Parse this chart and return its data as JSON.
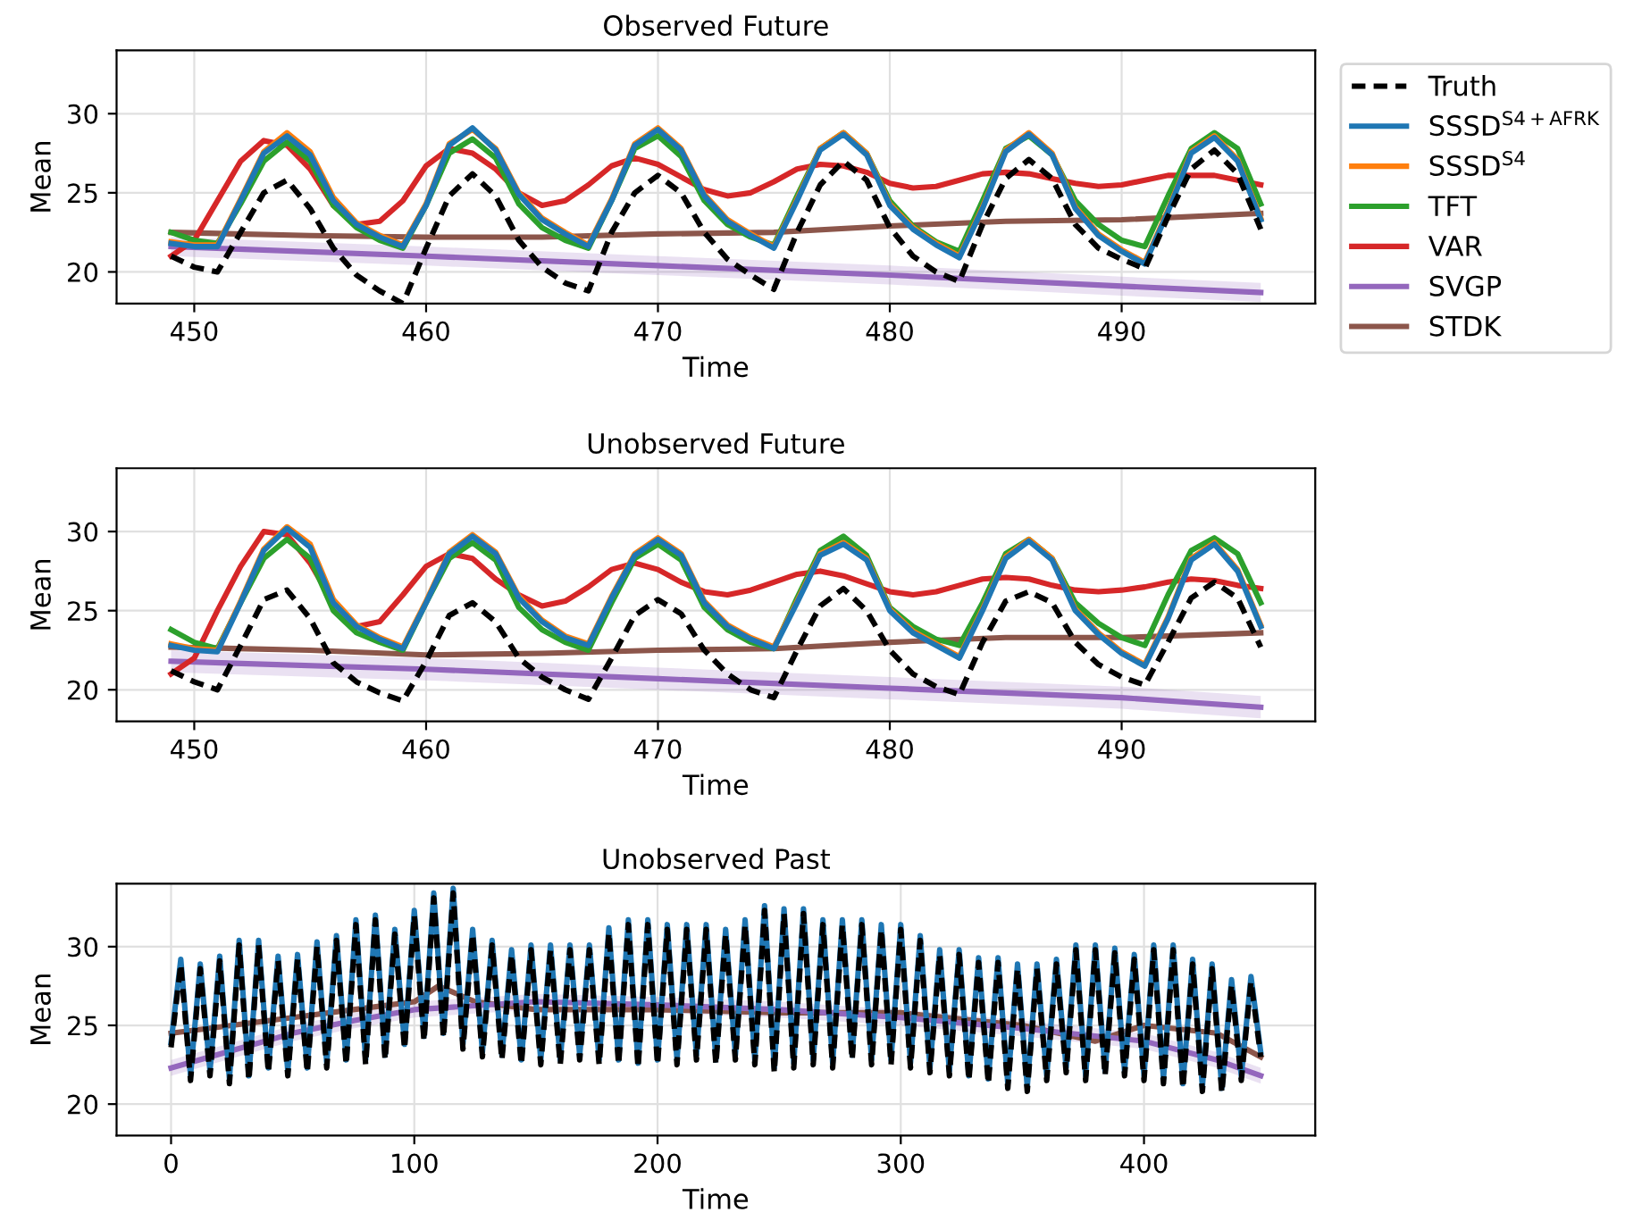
{
  "chart_data": [
    {
      "type": "line",
      "title": "Observed Future",
      "xlabel": "Time",
      "ylabel": "Mean",
      "xlim": [
        446.65,
        498.35
      ],
      "ylim": [
        18,
        34
      ],
      "xticks": [
        450,
        460,
        470,
        480,
        490
      ],
      "yticks": [
        20,
        25,
        30
      ],
      "grid": true,
      "legend": "right",
      "x": [
        449,
        450,
        451,
        452,
        453,
        454,
        455,
        456,
        457,
        458,
        459,
        460,
        461,
        462,
        463,
        464,
        465,
        466,
        467,
        468,
        469,
        470,
        471,
        472,
        473,
        474,
        475,
        476,
        477,
        478,
        479,
        480,
        481,
        482,
        483,
        484,
        485,
        486,
        487,
        488,
        489,
        490,
        491,
        492,
        493,
        494,
        495,
        496
      ],
      "series": [
        {
          "name": "Truth",
          "color": "#000000",
          "line_style": "dashed",
          "values": [
            21.0,
            20.3,
            20.0,
            22.5,
            25.0,
            25.8,
            24.0,
            21.5,
            19.8,
            18.8,
            18.0,
            21.5,
            24.8,
            26.2,
            24.8,
            22.0,
            20.3,
            19.3,
            18.8,
            22.5,
            25.0,
            26.1,
            25.0,
            22.5,
            20.8,
            19.8,
            18.9,
            22.5,
            25.5,
            27.0,
            25.8,
            22.8,
            21.0,
            20.0,
            19.4,
            23.0,
            25.9,
            27.1,
            25.9,
            23.0,
            21.5,
            20.8,
            20.2,
            23.5,
            26.5,
            27.7,
            26.2,
            22.7
          ]
        },
        {
          "name": "SSSD$^{S4+AFRK}$",
          "color": "#1f77b4",
          "values": [
            21.8,
            21.6,
            21.6,
            24.5,
            27.5,
            28.6,
            27.4,
            24.5,
            23.0,
            22.2,
            21.6,
            24.2,
            28.0,
            29.1,
            27.7,
            24.9,
            23.3,
            22.4,
            21.6,
            24.5,
            28.0,
            29.0,
            27.7,
            24.8,
            23.2,
            22.3,
            21.5,
            24.5,
            27.7,
            28.7,
            27.4,
            24.2,
            22.7,
            21.7,
            20.9,
            24.0,
            27.6,
            28.7,
            27.4,
            24.0,
            22.3,
            21.3,
            20.5,
            23.8,
            27.5,
            28.5,
            27.0,
            23.3
          ]
        },
        {
          "name": "SSSD$^{S4}$",
          "color": "#ff7f0e",
          "values": [
            21.9,
            21.7,
            21.7,
            24.6,
            27.6,
            28.8,
            27.6,
            24.7,
            23.1,
            22.3,
            21.7,
            24.3,
            28.1,
            29.0,
            27.8,
            25.0,
            23.4,
            22.5,
            21.7,
            24.6,
            28.1,
            29.1,
            27.8,
            24.9,
            23.3,
            22.4,
            21.6,
            24.6,
            27.8,
            28.8,
            27.5,
            24.3,
            22.8,
            21.8,
            21.0,
            24.1,
            27.7,
            28.8,
            27.5,
            24.1,
            22.4,
            21.4,
            20.6,
            23.9,
            27.6,
            28.6,
            27.1,
            23.4
          ]
        },
        {
          "name": "TFT",
          "color": "#2ca02c",
          "values": [
            22.5,
            22.0,
            21.8,
            24.3,
            27.0,
            28.2,
            27.0,
            24.2,
            22.8,
            22.0,
            21.5,
            24.2,
            27.5,
            28.4,
            27.2,
            24.3,
            22.8,
            22.0,
            21.5,
            24.5,
            27.8,
            28.6,
            27.3,
            24.5,
            23.0,
            22.2,
            21.7,
            24.8,
            27.8,
            28.8,
            27.5,
            24.5,
            22.9,
            21.9,
            21.3,
            24.5,
            27.8,
            28.6,
            27.4,
            24.5,
            23.0,
            22.0,
            21.6,
            24.8,
            27.8,
            28.8,
            27.8,
            24.3
          ]
        },
        {
          "name": "VAR",
          "color": "#d62728",
          "values": [
            21.0,
            22.0,
            24.5,
            27.0,
            28.3,
            28.0,
            26.5,
            24.2,
            23.0,
            23.2,
            24.5,
            26.7,
            27.8,
            27.5,
            26.5,
            25.0,
            24.2,
            24.5,
            25.5,
            26.7,
            27.2,
            26.8,
            26.0,
            25.2,
            24.8,
            25.0,
            25.7,
            26.5,
            26.8,
            26.7,
            26.3,
            25.6,
            25.3,
            25.4,
            25.8,
            26.2,
            26.3,
            26.2,
            25.9,
            25.6,
            25.4,
            25.5,
            25.8,
            26.1,
            26.1,
            26.1,
            25.8,
            25.5
          ]
        },
        {
          "name": "SVGP",
          "color": "#9467bd",
          "x": [
            449,
            460,
            470,
            480,
            490,
            496
          ],
          "values": [
            21.6,
            21.0,
            20.4,
            19.8,
            19.1,
            18.7
          ],
          "lower": [
            21.0,
            20.4,
            19.8,
            19.2,
            18.5,
            18.1
          ],
          "upper": [
            22.2,
            21.6,
            21.0,
            20.4,
            19.7,
            19.3
          ]
        },
        {
          "name": "STDK",
          "color": "#8c564b",
          "x": [
            449,
            455,
            460,
            465,
            470,
            475,
            480,
            485,
            490,
            496
          ],
          "values": [
            22.5,
            22.3,
            22.2,
            22.2,
            22.4,
            22.5,
            22.9,
            23.2,
            23.3,
            23.7
          ]
        }
      ]
    },
    {
      "type": "line",
      "title": "Unobserved Future",
      "xlabel": "Time",
      "ylabel": "Mean",
      "xlim": [
        446.65,
        498.35
      ],
      "ylim": [
        18,
        34
      ],
      "xticks": [
        450,
        460,
        470,
        480,
        490
      ],
      "yticks": [
        20,
        25,
        30
      ],
      "grid": true,
      "x": [
        449,
        450,
        451,
        452,
        453,
        454,
        455,
        456,
        457,
        458,
        459,
        460,
        461,
        462,
        463,
        464,
        465,
        466,
        467,
        468,
        469,
        470,
        471,
        472,
        473,
        474,
        475,
        476,
        477,
        478,
        479,
        480,
        481,
        482,
        483,
        484,
        485,
        486,
        487,
        488,
        489,
        490,
        491,
        492,
        493,
        494,
        495,
        496
      ],
      "series": [
        {
          "color": "#000000",
          "line_style": "dashed",
          "values": [
            21.2,
            20.5,
            20.0,
            22.8,
            25.7,
            26.3,
            24.5,
            21.7,
            20.5,
            19.8,
            19.3,
            21.8,
            24.7,
            25.5,
            24.3,
            22.0,
            20.8,
            20.0,
            19.4,
            22.0,
            24.7,
            25.7,
            24.8,
            22.5,
            21.0,
            20.0,
            19.5,
            22.5,
            25.3,
            26.4,
            25.0,
            22.5,
            21.0,
            20.2,
            19.7,
            23.0,
            25.6,
            26.2,
            25.5,
            23.0,
            21.6,
            20.8,
            20.3,
            23.0,
            25.8,
            26.8,
            25.8,
            22.7
          ]
        },
        {
          "color": "#1f77b4",
          "values": [
            22.8,
            22.5,
            22.4,
            25.5,
            28.8,
            30.2,
            29.0,
            25.5,
            24.0,
            23.2,
            22.6,
            25.5,
            28.6,
            29.7,
            28.6,
            25.8,
            24.3,
            23.3,
            22.8,
            25.8,
            28.5,
            29.5,
            28.5,
            25.5,
            24.0,
            23.2,
            22.6,
            25.5,
            28.5,
            29.2,
            28.2,
            25.0,
            23.6,
            22.8,
            22.0,
            25.0,
            28.3,
            29.4,
            28.2,
            25.0,
            23.5,
            22.3,
            21.5,
            24.5,
            28.2,
            29.2,
            27.5,
            24.0
          ]
        },
        {
          "color": "#ff7f0e",
          "values": [
            22.9,
            22.6,
            22.5,
            25.6,
            28.9,
            30.3,
            29.2,
            25.7,
            24.1,
            23.3,
            22.7,
            25.6,
            28.7,
            29.8,
            28.7,
            25.9,
            24.4,
            23.4,
            22.9,
            25.9,
            28.6,
            29.6,
            28.6,
            25.6,
            24.1,
            23.3,
            22.7,
            25.6,
            28.6,
            29.3,
            28.3,
            25.1,
            23.7,
            22.9,
            22.1,
            25.1,
            28.4,
            29.5,
            28.3,
            25.1,
            23.6,
            22.4,
            21.6,
            24.6,
            28.3,
            29.3,
            27.6,
            24.1
          ]
        },
        {
          "color": "#2ca02c",
          "values": [
            23.8,
            23.0,
            22.6,
            25.5,
            28.3,
            29.5,
            28.3,
            25.0,
            23.6,
            23.0,
            22.5,
            25.5,
            28.3,
            29.3,
            28.2,
            25.2,
            23.8,
            23.0,
            22.5,
            25.5,
            28.3,
            29.2,
            28.2,
            25.2,
            23.8,
            23.0,
            22.6,
            25.8,
            28.8,
            29.7,
            28.5,
            25.2,
            24.0,
            23.2,
            22.8,
            25.5,
            28.6,
            29.5,
            28.3,
            25.5,
            24.2,
            23.3,
            22.8,
            26.0,
            28.8,
            29.6,
            28.6,
            25.5
          ]
        },
        {
          "color": "#d62728",
          "values": [
            21.0,
            22.0,
            25.0,
            27.8,
            30.0,
            29.8,
            28.0,
            25.5,
            24.0,
            24.3,
            26.0,
            27.8,
            28.6,
            28.3,
            27.0,
            26.0,
            25.3,
            25.6,
            26.5,
            27.6,
            28.0,
            27.6,
            26.8,
            26.2,
            26.0,
            26.3,
            26.8,
            27.3,
            27.5,
            27.2,
            26.7,
            26.2,
            26.0,
            26.2,
            26.6,
            27.0,
            27.1,
            27.0,
            26.6,
            26.3,
            26.2,
            26.3,
            26.5,
            26.8,
            27.0,
            26.9,
            26.6,
            26.4
          ]
        },
        {
          "color": "#9467bd",
          "x": [
            449,
            460,
            470,
            480,
            490,
            496
          ],
          "values": [
            21.8,
            21.3,
            20.7,
            20.1,
            19.5,
            18.9
          ],
          "lower": [
            21.1,
            20.6,
            20.0,
            19.4,
            18.8,
            18.2
          ],
          "upper": [
            22.5,
            22.0,
            21.4,
            20.8,
            20.2,
            19.6
          ]
        },
        {
          "color": "#8c564b",
          "x": [
            449,
            455,
            460,
            465,
            470,
            475,
            480,
            485,
            490,
            496
          ],
          "values": [
            22.7,
            22.5,
            22.2,
            22.3,
            22.5,
            22.6,
            23.0,
            23.3,
            23.3,
            23.6
          ]
        }
      ]
    },
    {
      "type": "line",
      "title": "Unobserved Past",
      "xlabel": "Time",
      "ylabel": "Mean",
      "xlim": [
        -22.4,
        470.4
      ],
      "ylim": [
        18,
        34
      ],
      "xticks": [
        0,
        100,
        200,
        300,
        400
      ],
      "yticks": [
        20,
        25,
        30
      ],
      "grid": true,
      "x": [
        0,
        4,
        8,
        12,
        16,
        20,
        24,
        28,
        32,
        36,
        40,
        44,
        48,
        52,
        56,
        60,
        64,
        68,
        72,
        76,
        80,
        84,
        88,
        92,
        96,
        100,
        104,
        108,
        112,
        116,
        120,
        124,
        128,
        132,
        136,
        140,
        144,
        148,
        152,
        156,
        160,
        164,
        168,
        172,
        176,
        180,
        184,
        188,
        192,
        196,
        200,
        204,
        208,
        212,
        216,
        220,
        224,
        228,
        232,
        236,
        240,
        244,
        248,
        252,
        256,
        260,
        264,
        268,
        272,
        276,
        280,
        284,
        288,
        292,
        296,
        300,
        304,
        308,
        312,
        316,
        320,
        324,
        328,
        332,
        336,
        340,
        344,
        348,
        352,
        356,
        360,
        364,
        368,
        372,
        376,
        380,
        384,
        388,
        392,
        396,
        400,
        404,
        408,
        412,
        416,
        420,
        424,
        428,
        432,
        436,
        440,
        444,
        448
      ],
      "series": [
        {
          "color": "#000000",
          "line_style": "dashed",
          "values": [
            23.6,
            28.9,
            21.5,
            28.6,
            21.8,
            29.1,
            21.3,
            30.1,
            21.5,
            30.1,
            22.0,
            29.1,
            21.8,
            29.2,
            22.0,
            30.0,
            22.3,
            30.4,
            22.5,
            31.4,
            22.5,
            31.7,
            22.8,
            30.8,
            23.5,
            32.0,
            24.0,
            33.1,
            24.2,
            33.4,
            23.5,
            30.8,
            23.0,
            30.1,
            22.8,
            29.5,
            22.5,
            29.8,
            22.5,
            29.8,
            22.5,
            29.8,
            22.8,
            29.8,
            22.5,
            30.9,
            22.5,
            31.4,
            22.3,
            31.4,
            22.5,
            31.1,
            22.5,
            31.1,
            22.8,
            31.1,
            22.5,
            30.8,
            22.8,
            31.4,
            22.5,
            32.3,
            22.0,
            32.1,
            22.3,
            32.1,
            22.5,
            31.4,
            22.3,
            31.4,
            22.8,
            31.4,
            22.5,
            31.1,
            22.5,
            31.1,
            22.3,
            30.4,
            22.0,
            29.5,
            21.8,
            29.5,
            21.5,
            29.0,
            21.3,
            29.0,
            21.0,
            28.6,
            20.8,
            28.6,
            21.5,
            28.9,
            22.0,
            29.8,
            21.5,
            29.8,
            21.8,
            29.6,
            21.8,
            29.2,
            21.5,
            29.8,
            21.3,
            29.8,
            21.0,
            28.9,
            20.8,
            28.6,
            20.7,
            27.6,
            21.5,
            27.8,
            23.0
          ]
        },
        {
          "color": "#1f77b4",
          "values": [
            23.9,
            29.2,
            21.8,
            28.9,
            22.1,
            29.4,
            21.6,
            30.4,
            21.8,
            30.4,
            22.3,
            29.4,
            22.1,
            29.5,
            22.3,
            30.3,
            22.6,
            30.7,
            22.8,
            31.7,
            22.8,
            32.0,
            23.1,
            31.1,
            23.8,
            32.3,
            24.3,
            33.4,
            24.5,
            33.7,
            23.8,
            31.1,
            23.3,
            30.4,
            23.1,
            29.8,
            22.8,
            30.1,
            22.8,
            30.1,
            22.8,
            30.1,
            23.1,
            30.1,
            22.8,
            31.2,
            22.8,
            31.7,
            22.6,
            31.7,
            22.8,
            31.4,
            22.8,
            31.4,
            23.1,
            31.4,
            22.8,
            31.1,
            23.1,
            31.7,
            22.8,
            32.6,
            22.3,
            32.4,
            22.6,
            32.4,
            22.8,
            31.7,
            22.6,
            31.7,
            23.1,
            31.7,
            22.8,
            31.4,
            22.8,
            31.4,
            22.6,
            30.7,
            22.3,
            29.8,
            22.1,
            29.8,
            21.8,
            29.3,
            21.6,
            29.3,
            21.3,
            28.9,
            21.1,
            28.9,
            21.8,
            29.2,
            22.3,
            30.1,
            21.8,
            30.1,
            22.1,
            29.9,
            22.1,
            29.5,
            21.8,
            30.1,
            21.6,
            30.1,
            21.3,
            29.2,
            21.1,
            28.9,
            21.0,
            27.9,
            21.8,
            28.1,
            23.3
          ]
        },
        {
          "color": "#9467bd",
          "x": [
            0,
            25,
            50,
            75,
            100,
            150,
            200,
            250,
            300,
            350,
            400,
            430,
            448
          ],
          "values": [
            22.3,
            23.4,
            24.5,
            25.3,
            26.0,
            26.5,
            26.3,
            26.0,
            25.5,
            24.8,
            24.0,
            22.8,
            21.8
          ],
          "lower": [
            21.8,
            22.9,
            24.0,
            24.8,
            25.5,
            26.0,
            25.8,
            25.5,
            25.0,
            24.3,
            23.5,
            22.3,
            21.3
          ],
          "upper": [
            22.8,
            23.9,
            25.0,
            25.8,
            26.5,
            27.0,
            26.8,
            26.5,
            26.0,
            25.3,
            24.5,
            23.3,
            22.3
          ]
        },
        {
          "color": "#8c564b",
          "x": [
            0,
            25,
            50,
            75,
            100,
            110,
            125,
            150,
            200,
            250,
            300,
            350,
            380,
            400,
            430,
            448
          ],
          "values": [
            24.5,
            25.0,
            25.5,
            26.0,
            26.5,
            27.5,
            26.5,
            26.0,
            26.0,
            25.8,
            25.8,
            25.0,
            24.0,
            25.0,
            24.5,
            23.0
          ]
        }
      ]
    }
  ]
}
